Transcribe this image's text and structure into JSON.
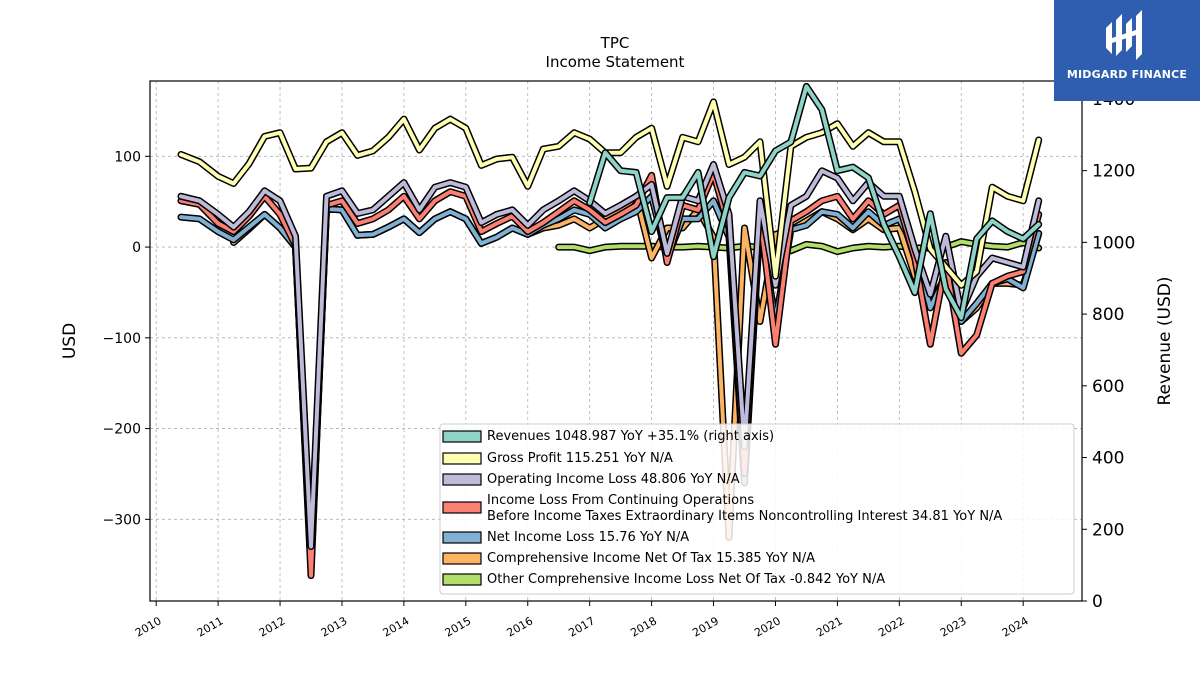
{
  "chart_data": {
    "type": "line",
    "title": "TPC",
    "subtitle": "Income Statement",
    "ylabel": "USD",
    "ylabel_right": "Revenue (USD)",
    "ylim": [
      -390,
      183
    ],
    "ylim_right": [
      0,
      1450
    ],
    "xlim": [
      2009.9,
      2024.95
    ],
    "yticks": [
      -300,
      -200,
      -100,
      0,
      100
    ],
    "ytick_labels": [
      "−300",
      "−200",
      "−100",
      "0",
      "100"
    ],
    "yticks_right": [
      0,
      200,
      400,
      600,
      800,
      1000,
      1200,
      1400
    ],
    "ytick_labels_right": [
      "0",
      "200",
      "400",
      "600",
      "800",
      "1000",
      "1200",
      "1400"
    ],
    "xticks": [
      2010,
      2011,
      2012,
      2013,
      2014,
      2015,
      2016,
      2017,
      2018,
      2019,
      2020,
      2021,
      2022,
      2023,
      2024
    ],
    "xtick_labels": [
      "2010",
      "2011",
      "2012",
      "2013",
      "2014",
      "2015",
      "2016",
      "2017",
      "2018",
      "2019",
      "2020",
      "2021",
      "2022",
      "2023",
      "2024"
    ],
    "grid": true,
    "legend_position": "lower-right",
    "series": [
      {
        "name": "Revenues  1048.987 YoY +35.1% (right axis)",
        "color": "#8dd3c7",
        "axis": "right",
        "x": [
          2017.0,
          2017.25,
          2017.5,
          2017.75,
          2018.0,
          2018.25,
          2018.5,
          2018.75,
          2019.0,
          2019.25,
          2019.5,
          2019.75,
          2020.0,
          2020.25,
          2020.5,
          2020.75,
          2021.0,
          2021.25,
          2021.5,
          2021.75,
          2022.0,
          2022.25,
          2022.5,
          2022.75,
          2023.0,
          2023.25,
          2023.5,
          2023.75,
          2024.0,
          2024.25
        ],
        "values": [
          1110,
          1250,
          1200,
          1195,
          1030,
          1125,
          1125,
          1195,
          960,
          1125,
          1195,
          1185,
          1255,
          1280,
          1435,
          1370,
          1200,
          1210,
          1180,
          1050,
          960,
          860,
          1080,
          870,
          790,
          1010,
          1060,
          1030,
          1010,
          1050
        ]
      },
      {
        "name": "Gross Profit  115.251 YoY N/A",
        "color": "#ffffb3",
        "axis": "left",
        "x": [
          2010.4,
          2010.7,
          2011.0,
          2011.25,
          2011.5,
          2011.75,
          2012.0,
          2012.25,
          2012.5,
          2012.75,
          2013.0,
          2013.25,
          2013.5,
          2013.75,
          2014.0,
          2014.25,
          2014.5,
          2014.75,
          2015.0,
          2015.25,
          2015.5,
          2015.75,
          2016.0,
          2016.25,
          2016.5,
          2016.75,
          2017.0,
          2017.25,
          2017.5,
          2017.75,
          2018.0,
          2018.25,
          2018.5,
          2018.75,
          2019.0,
          2019.25,
          2019.5,
          2019.75,
          2020.0,
          2020.25,
          2020.5,
          2020.75,
          2021.0,
          2021.25,
          2021.5,
          2021.75,
          2022.0,
          2022.25,
          2022.5,
          2022.75,
          2023.0,
          2023.25,
          2023.5,
          2023.75,
          2024.0,
          2024.25
        ],
        "values": [
          102,
          94,
          78,
          70,
          92,
          122,
          126,
          86,
          87,
          116,
          126,
          101,
          106,
          121,
          141,
          107,
          131,
          141,
          131,
          90,
          97,
          99,
          67,
          108,
          111,
          126,
          119,
          104,
          104,
          121,
          131,
          67,
          121,
          116,
          160,
          91,
          99,
          116,
          -32,
          111,
          121,
          126,
          136,
          111,
          126,
          116,
          116,
          61,
          -2,
          -22,
          -42,
          -27,
          66,
          56,
          51,
          118
        ]
      },
      {
        "name": "Operating Income Loss  48.806 YoY N/A",
        "color": "#bebada",
        "axis": "left",
        "x": [
          2010.4,
          2010.7,
          2011.0,
          2011.25,
          2011.5,
          2011.75,
          2012.0,
          2012.25,
          2012.5,
          2012.75,
          2013.0,
          2013.25,
          2013.5,
          2013.75,
          2014.0,
          2014.25,
          2014.5,
          2014.75,
          2015.0,
          2015.25,
          2015.5,
          2015.75,
          2016.0,
          2016.25,
          2016.5,
          2016.75,
          2017.0,
          2017.25,
          2017.5,
          2017.75,
          2018.0,
          2018.25,
          2018.5,
          2018.75,
          2019.0,
          2019.25,
          2019.5,
          2019.75,
          2020.0,
          2020.25,
          2020.5,
          2020.75,
          2021.0,
          2021.25,
          2021.5,
          2021.75,
          2022.0,
          2022.25,
          2022.5,
          2022.75,
          2023.0,
          2023.25,
          2023.5,
          2023.75,
          2024.0,
          2024.25
        ],
        "values": [
          56,
          51,
          36,
          22,
          39,
          62,
          51,
          12,
          -330,
          56,
          62,
          37,
          41,
          56,
          71,
          41,
          66,
          71,
          66,
          27,
          36,
          41,
          24,
          41,
          51,
          62,
          51,
          37,
          46,
          56,
          69,
          -7,
          56,
          51,
          91,
          36,
          -220,
          51,
          -42,
          46,
          56,
          84,
          76,
          51,
          71,
          56,
          56,
          -2,
          -52,
          12,
          -72,
          -32,
          -12,
          -17,
          -22,
          51
        ]
      },
      {
        "name": "Income Loss From Continuing Operations Before Income Taxes Extraordinary Items Noncontrolling Interest  34.81 YoY N/A",
        "color": "#fb8072",
        "axis": "left",
        "x": [
          2010.4,
          2010.7,
          2011.0,
          2011.25,
          2011.5,
          2011.75,
          2012.0,
          2012.25,
          2012.5,
          2012.75,
          2013.0,
          2013.25,
          2013.5,
          2013.75,
          2014.0,
          2014.25,
          2014.5,
          2014.75,
          2015.0,
          2015.25,
          2015.5,
          2015.75,
          2016.0,
          2016.25,
          2016.5,
          2016.75,
          2017.0,
          2017.25,
          2017.5,
          2017.75,
          2018.0,
          2018.25,
          2018.5,
          2018.75,
          2019.0,
          2019.25,
          2019.5,
          2019.75,
          2020.0,
          2020.25,
          2020.5,
          2020.75,
          2021.0,
          2021.25,
          2021.5,
          2021.75,
          2022.0,
          2022.25,
          2022.5,
          2022.75,
          2023.0,
          2023.25,
          2023.5,
          2023.75,
          2024.0,
          2024.25
        ],
        "values": [
          51,
          47,
          26,
          17,
          34,
          56,
          36,
          2,
          -362,
          46,
          51,
          26,
          31,
          41,
          56,
          31,
          51,
          61,
          56,
          17,
          26,
          34,
          17,
          27,
          39,
          51,
          41,
          27,
          36,
          46,
          79,
          -17,
          46,
          41,
          81,
          21,
          -250,
          36,
          -107,
          29,
          39,
          51,
          56,
          31,
          51,
          36,
          46,
          -12,
          -107,
          -17,
          -117,
          -97,
          -40,
          -32,
          -27,
          36
        ]
      },
      {
        "name": "Net Income Loss  15.76 YoY N/A",
        "color": "#80b1d3",
        "axis": "left",
        "x": [
          2010.4,
          2010.7,
          2011.0,
          2011.25,
          2011.5,
          2011.75,
          2012.0,
          2012.25,
          2012.5,
          2012.75,
          2013.0,
          2013.25,
          2013.5,
          2013.75,
          2014.0,
          2014.25,
          2014.5,
          2014.75,
          2015.0,
          2015.25,
          2015.5,
          2015.75,
          2016.0,
          2016.25,
          2016.5,
          2016.75,
          2017.0,
          2017.25,
          2017.5,
          2017.75,
          2018.0,
          2018.25,
          2018.5,
          2018.75,
          2019.0,
          2019.25,
          2019.5,
          2019.75,
          2020.0,
          2020.25,
          2020.5,
          2020.75,
          2021.0,
          2021.25,
          2021.5,
          2021.75,
          2022.0,
          2022.25,
          2022.5,
          2022.75,
          2023.0,
          2023.25,
          2023.5,
          2023.75,
          2024.0,
          2024.25
        ],
        "values": [
          33,
          31,
          17,
          8,
          22,
          36,
          21,
          0,
          -352,
          42,
          41,
          13,
          14,
          22,
          31,
          16,
          31,
          39,
          31,
          4,
          11,
          21,
          14,
          24,
          31,
          41,
          36,
          21,
          31,
          39,
          56,
          -12,
          31,
          31,
          51,
          11,
          -260,
          26,
          -82,
          19,
          24,
          39,
          36,
          21,
          39,
          24,
          31,
          -2,
          -67,
          -32,
          -82,
          -62,
          -40,
          -35,
          -45,
          15
        ]
      },
      {
        "name": "Comprehensive Income Net Of Tax  15.385 YoY N/A",
        "color": "#fdb462",
        "axis": "left",
        "x": [
          2011.25,
          2011.5,
          2011.75,
          2012.0,
          2012.25,
          2012.5,
          2012.75,
          2013.0,
          2013.25,
          2013.5,
          2013.75,
          2014.0,
          2014.25,
          2014.5,
          2014.75,
          2015.0,
          2015.25,
          2015.5,
          2015.75,
          2016.0,
          2016.25,
          2016.5,
          2016.75,
          2017.0,
          2017.25,
          2017.5,
          2017.75,
          2018.0,
          2018.25,
          2018.5,
          2018.75,
          2019.0,
          2019.25,
          2019.5,
          2019.75,
          2020.0,
          2020.25,
          2020.5,
          2020.75,
          2021.0,
          2021.25,
          2021.5,
          2021.75,
          2022.0,
          2022.25,
          2022.5,
          2022.75,
          2023.0,
          2023.25,
          2023.5,
          2023.75,
          2024.0,
          2024.25
        ],
        "values": [
          5,
          20,
          36,
          21,
          0,
          -352,
          42,
          41,
          13,
          14,
          22,
          31,
          16,
          31,
          39,
          31,
          4,
          11,
          21,
          14,
          21,
          24,
          31,
          21,
          31,
          39,
          56,
          -12,
          21,
          21,
          41,
          11,
          -320,
          21,
          -82,
          14,
          19,
          29,
          39,
          31,
          19,
          31,
          19,
          21,
          -32,
          -62,
          -32,
          -82,
          -67,
          -40,
          -40,
          -42,
          15
        ]
      },
      {
        "name": "Other Comprehensive Income Loss Net Of Tax  -0.842 YoY N/A",
        "color": "#b3de69",
        "axis": "left",
        "x": [
          2016.5,
          2016.75,
          2017.0,
          2017.25,
          2017.5,
          2017.75,
          2018.0,
          2018.25,
          2018.5,
          2018.75,
          2019.0,
          2019.25,
          2019.5,
          2019.75,
          2020.0,
          2020.25,
          2020.5,
          2020.75,
          2021.0,
          2021.25,
          2021.5,
          2021.75,
          2022.0,
          2022.25,
          2022.5,
          2022.75,
          2023.0,
          2023.25,
          2023.5,
          2023.75,
          2024.0,
          2024.25
        ],
        "values": [
          0,
          0,
          -4,
          0,
          1,
          1,
          1,
          0,
          0,
          1,
          0,
          -1,
          1,
          0,
          -1,
          -4,
          3,
          1,
          -5,
          -1,
          1,
          0,
          1,
          -1,
          -1,
          0,
          6,
          3,
          1,
          0,
          5,
          -1
        ]
      }
    ]
  },
  "logo": {
    "text": "MIDGARD FINANCE",
    "icon": "midgard-logo-icon"
  }
}
